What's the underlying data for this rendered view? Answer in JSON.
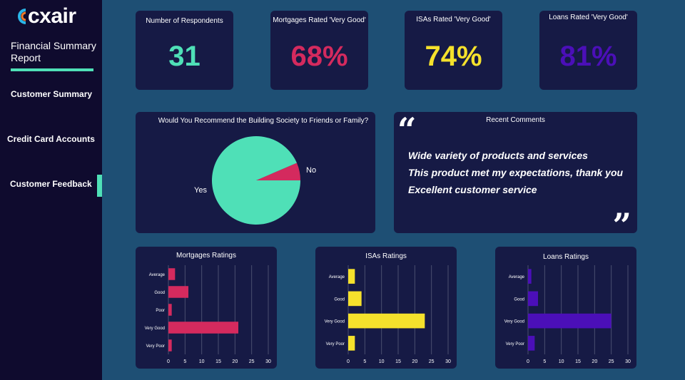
{
  "brand": {
    "logo_text": "cxair"
  },
  "sidebar": {
    "report_title": "Financial Summary Report",
    "items": [
      {
        "label": "Customer Summary"
      },
      {
        "label": "Credit Card Accounts"
      },
      {
        "label": "Customer Feedback",
        "active": true
      }
    ]
  },
  "kpis": [
    {
      "label": "Number of Respondents",
      "value": "31",
      "color": "#4fe0b7"
    },
    {
      "label": "Mortgages Rated 'Very Good'",
      "value": "68%",
      "color": "#d42a5e"
    },
    {
      "label": "ISAs Rated 'Very Good'",
      "value": "74%",
      "color": "#f5e12c"
    },
    {
      "label": "Loans Rated 'Very Good'",
      "value": "81%",
      "color": "#4b0fb8"
    }
  ],
  "recommend": {
    "title": "Would You Recommend the Building Society to Friends or Family?"
  },
  "comments": {
    "title": "Recent Comments",
    "items": [
      "Wide variety of products and services",
      "This product met my expectations, thank you",
      "Excellent customer service"
    ]
  },
  "chart_data": [
    {
      "type": "pie",
      "labels": [
        "Yes",
        "No"
      ],
      "values": [
        29,
        2
      ],
      "colors": [
        "#4fe0b7",
        "#d42a5e"
      ]
    },
    {
      "type": "bar",
      "orientation": "horizontal",
      "title": "Mortgages Ratings",
      "categories": [
        "Average",
        "Good",
        "Poor",
        "Very Good",
        "Very Poor"
      ],
      "values": [
        2,
        6,
        1,
        21,
        1
      ],
      "xlim": [
        0,
        30
      ],
      "ticks": [
        0,
        5,
        10,
        15,
        20,
        25,
        30
      ],
      "color": "#d42a5e",
      "grid": true
    },
    {
      "type": "bar",
      "orientation": "horizontal",
      "title": "ISAs Ratings",
      "categories": [
        "Average",
        "Good",
        "Very Good",
        "Very Poor"
      ],
      "values": [
        2,
        4,
        23,
        2
      ],
      "xlim": [
        0,
        30
      ],
      "ticks": [
        0,
        5,
        10,
        15,
        20,
        25,
        30
      ],
      "color": "#f5e12c",
      "grid": true
    },
    {
      "type": "bar",
      "orientation": "horizontal",
      "title": "Loans Ratings",
      "categories": [
        "Average",
        "Good",
        "Very Good",
        "Very Poor"
      ],
      "values": [
        1,
        3,
        25,
        2
      ],
      "xlim": [
        0,
        30
      ],
      "ticks": [
        0,
        5,
        10,
        15,
        20,
        25,
        30
      ],
      "color": "#4b0fb8",
      "grid": true
    }
  ]
}
